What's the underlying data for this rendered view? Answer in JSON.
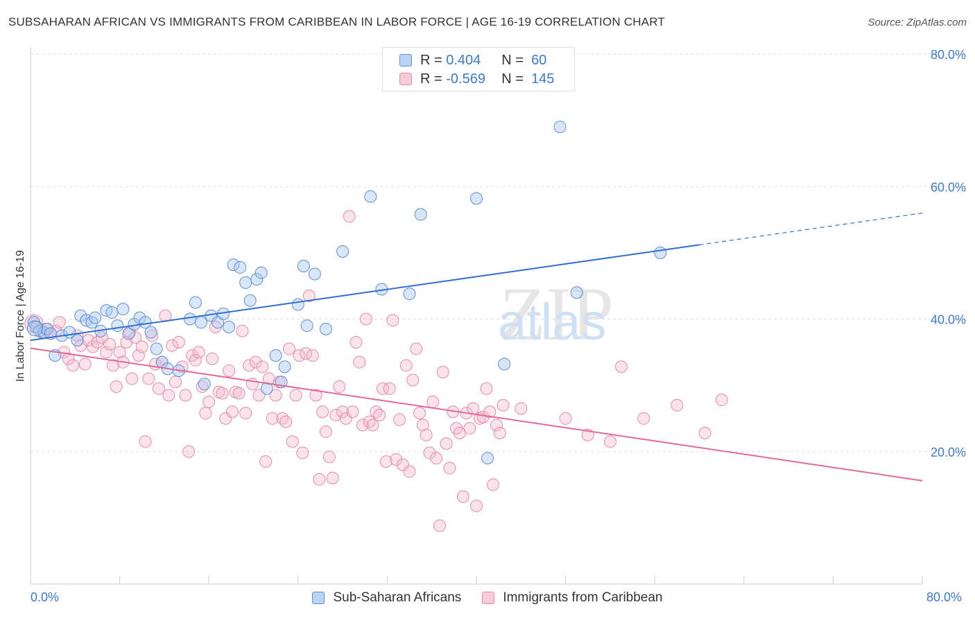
{
  "header": {
    "title": "SUBSAHARAN AFRICAN VS IMMIGRANTS FROM CARIBBEAN IN LABOR FORCE | AGE 16-19 CORRELATION CHART",
    "source": "Source: ZipAtlas.com"
  },
  "legend": {
    "series1": {
      "r_label": "R =",
      "r_value": "0.404",
      "n_label": "N =",
      "n_value": "60"
    },
    "series2": {
      "r_label": "R =",
      "r_value": "-0.569",
      "n_label": "N =",
      "n_value": "145"
    }
  },
  "watermark": {
    "part1": "ZIP",
    "part2": "atlas"
  },
  "colors": {
    "blue_fill": "#a8c8f0",
    "blue_stroke": "#5b8fd6",
    "blue_line": "#2f6fcf",
    "pink_fill": "#f6b8cc",
    "pink_stroke": "#e58aa8",
    "pink_line": "#e06a99",
    "tick_text": "#3a7bd5",
    "grid": "#dddddd"
  },
  "chart_data": {
    "type": "scatter",
    "ylabel": "In Labor Force | Age 16-19",
    "xlabel": "",
    "xlim": [
      0,
      80
    ],
    "ylim": [
      0,
      80
    ],
    "x_tick_labels": {
      "left": "0.0%",
      "right": "80.0%"
    },
    "y_ticks": [
      {
        "value": 20,
        "label": "20.0%"
      },
      {
        "value": 40,
        "label": "40.0%"
      },
      {
        "value": 60,
        "label": "60.0%"
      },
      {
        "value": 80,
        "label": "80.0%"
      }
    ],
    "grid": true,
    "series": [
      {
        "name": "Sub-Saharan Africans",
        "color": "#5b8fd6",
        "trend": {
          "x0": 0,
          "y0": 36.8,
          "x1": 60,
          "y1": 51.2,
          "dash_to_x": 80,
          "dash_to_y": 56.0
        },
        "points": [
          [
            0.3,
            39.5
          ],
          [
            0.5,
            38.8
          ],
          [
            0.8,
            38.2
          ],
          [
            1.2,
            38.0
          ],
          [
            1.5,
            38.5
          ],
          [
            1.8,
            37.8
          ],
          [
            2.2,
            34.5
          ],
          [
            2.8,
            37.5
          ],
          [
            3.5,
            38.0
          ],
          [
            4.2,
            36.8
          ],
          [
            4.5,
            40.5
          ],
          [
            5.0,
            39.8
          ],
          [
            5.5,
            39.5
          ],
          [
            5.8,
            40.2
          ],
          [
            6.3,
            38.2
          ],
          [
            6.8,
            41.3
          ],
          [
            7.3,
            41.0
          ],
          [
            7.8,
            39.0
          ],
          [
            8.3,
            41.5
          ],
          [
            8.8,
            37.8
          ],
          [
            9.3,
            39.2
          ],
          [
            9.8,
            40.2
          ],
          [
            10.3,
            39.5
          ],
          [
            10.8,
            38.0
          ],
          [
            11.3,
            35.5
          ],
          [
            11.8,
            33.5
          ],
          [
            12.3,
            32.5
          ],
          [
            13.3,
            32.2
          ],
          [
            14.3,
            40.0
          ],
          [
            14.8,
            42.5
          ],
          [
            15.3,
            39.5
          ],
          [
            15.6,
            30.2
          ],
          [
            16.2,
            40.5
          ],
          [
            16.8,
            39.5
          ],
          [
            17.3,
            40.8
          ],
          [
            17.8,
            38.8
          ],
          [
            18.2,
            48.2
          ],
          [
            18.8,
            47.8
          ],
          [
            19.3,
            45.5
          ],
          [
            19.7,
            42.8
          ],
          [
            20.3,
            46.0
          ],
          [
            20.7,
            47.0
          ],
          [
            21.2,
            29.5
          ],
          [
            22.0,
            34.5
          ],
          [
            22.5,
            30.5
          ],
          [
            22.8,
            32.8
          ],
          [
            24.0,
            42.2
          ],
          [
            24.5,
            48.0
          ],
          [
            25.5,
            46.8
          ],
          [
            24.8,
            39.0
          ],
          [
            26.5,
            38.5
          ],
          [
            28.0,
            50.2
          ],
          [
            30.5,
            58.5
          ],
          [
            31.5,
            44.5
          ],
          [
            34.0,
            43.8
          ],
          [
            35.0,
            55.8
          ],
          [
            40.0,
            58.2
          ],
          [
            41.0,
            19.0
          ],
          [
            42.5,
            33.2
          ],
          [
            47.5,
            69.0
          ],
          [
            49.0,
            44.0
          ],
          [
            56.5,
            50.0
          ]
        ]
      },
      {
        "name": "Immigrants from Caribbean",
        "color": "#e58aa8",
        "trend": {
          "x0": 0,
          "y0": 35.6,
          "x1": 80,
          "y1": 15.6
        },
        "points": [
          [
            0.3,
            39.5
          ],
          [
            0.6,
            38.8
          ],
          [
            1.0,
            38.0
          ],
          [
            1.4,
            38.5
          ],
          [
            1.8,
            37.8
          ],
          [
            2.3,
            38.2
          ],
          [
            2.6,
            39.5
          ],
          [
            3.0,
            35.0
          ],
          [
            3.4,
            34.0
          ],
          [
            3.8,
            33.0
          ],
          [
            4.2,
            37.5
          ],
          [
            4.5,
            36.0
          ],
          [
            4.9,
            33.2
          ],
          [
            5.2,
            36.8
          ],
          [
            5.6,
            35.8
          ],
          [
            6.0,
            36.5
          ],
          [
            6.4,
            37.2
          ],
          [
            6.8,
            35.0
          ],
          [
            7.1,
            36.2
          ],
          [
            7.4,
            33.0
          ],
          [
            7.7,
            29.8
          ],
          [
            8.0,
            35.0
          ],
          [
            8.3,
            33.5
          ],
          [
            8.6,
            36.5
          ],
          [
            8.9,
            38.0
          ],
          [
            9.1,
            31.0
          ],
          [
            9.4,
            37.2
          ],
          [
            9.7,
            34.5
          ],
          [
            10.0,
            35.8
          ],
          [
            10.3,
            21.5
          ],
          [
            10.6,
            31.0
          ],
          [
            10.9,
            37.5
          ],
          [
            11.2,
            33.2
          ],
          [
            11.5,
            29.5
          ],
          [
            11.8,
            33.5
          ],
          [
            12.1,
            40.5
          ],
          [
            12.4,
            28.5
          ],
          [
            12.7,
            36.0
          ],
          [
            13.0,
            30.5
          ],
          [
            13.3,
            36.5
          ],
          [
            13.6,
            32.8
          ],
          [
            13.9,
            28.5
          ],
          [
            14.2,
            20.0
          ],
          [
            14.5,
            34.5
          ],
          [
            14.8,
            33.8
          ],
          [
            15.1,
            35.0
          ],
          [
            15.4,
            29.8
          ],
          [
            15.7,
            25.8
          ],
          [
            16.0,
            27.5
          ],
          [
            16.3,
            34.0
          ],
          [
            16.6,
            38.8
          ],
          [
            16.9,
            29.0
          ],
          [
            17.2,
            28.8
          ],
          [
            17.5,
            25.0
          ],
          [
            17.8,
            32.2
          ],
          [
            18.1,
            26.0
          ],
          [
            18.4,
            29.0
          ],
          [
            18.7,
            28.8
          ],
          [
            19.0,
            38.2
          ],
          [
            19.3,
            25.8
          ],
          [
            19.6,
            33.0
          ],
          [
            19.9,
            30.2
          ],
          [
            20.2,
            33.5
          ],
          [
            20.5,
            28.5
          ],
          [
            20.8,
            32.8
          ],
          [
            21.1,
            18.5
          ],
          [
            21.4,
            31.0
          ],
          [
            21.7,
            25.0
          ],
          [
            22.0,
            28.5
          ],
          [
            22.3,
            30.5
          ],
          [
            22.6,
            25.0
          ],
          [
            22.9,
            24.5
          ],
          [
            23.2,
            35.5
          ],
          [
            23.5,
            21.5
          ],
          [
            23.8,
            28.5
          ],
          [
            24.1,
            34.5
          ],
          [
            24.4,
            19.8
          ],
          [
            24.7,
            34.8
          ],
          [
            25.0,
            43.5
          ],
          [
            25.3,
            34.5
          ],
          [
            25.6,
            28.5
          ],
          [
            25.9,
            15.8
          ],
          [
            26.2,
            26.0
          ],
          [
            26.5,
            23.0
          ],
          [
            26.8,
            19.2
          ],
          [
            27.1,
            16.0
          ],
          [
            27.4,
            25.5
          ],
          [
            27.7,
            29.8
          ],
          [
            28.0,
            26.0
          ],
          [
            28.3,
            25.0
          ],
          [
            28.6,
            55.5
          ],
          [
            28.9,
            26.0
          ],
          [
            29.2,
            36.5
          ],
          [
            29.5,
            33.5
          ],
          [
            29.8,
            24.0
          ],
          [
            30.1,
            40.0
          ],
          [
            30.4,
            24.5
          ],
          [
            30.7,
            24.0
          ],
          [
            31.0,
            26.0
          ],
          [
            31.3,
            25.5
          ],
          [
            31.6,
            29.5
          ],
          [
            31.9,
            18.5
          ],
          [
            32.2,
            29.5
          ],
          [
            32.5,
            39.8
          ],
          [
            32.8,
            18.8
          ],
          [
            33.1,
            24.8
          ],
          [
            33.4,
            18.0
          ],
          [
            33.7,
            33.0
          ],
          [
            34.0,
            17.0
          ],
          [
            34.3,
            30.8
          ],
          [
            34.6,
            35.5
          ],
          [
            34.9,
            25.8
          ],
          [
            35.2,
            24.0
          ],
          [
            35.5,
            22.5
          ],
          [
            35.8,
            19.8
          ],
          [
            36.1,
            27.5
          ],
          [
            36.4,
            19.0
          ],
          [
            36.7,
            8.8
          ],
          [
            37.0,
            32.0
          ],
          [
            37.3,
            21.2
          ],
          [
            37.6,
            17.5
          ],
          [
            37.9,
            26.0
          ],
          [
            38.2,
            23.5
          ],
          [
            38.5,
            22.8
          ],
          [
            38.8,
            13.2
          ],
          [
            39.1,
            25.8
          ],
          [
            39.4,
            23.5
          ],
          [
            39.7,
            26.5
          ],
          [
            40.0,
            11.8
          ],
          [
            40.3,
            25.0
          ],
          [
            40.6,
            25.2
          ],
          [
            40.9,
            29.5
          ],
          [
            41.2,
            26.0
          ],
          [
            41.5,
            15.0
          ],
          [
            41.8,
            24.0
          ],
          [
            42.1,
            22.8
          ],
          [
            42.4,
            27.0
          ],
          [
            44.0,
            26.5
          ],
          [
            48.0,
            25.0
          ],
          [
            50.0,
            22.5
          ],
          [
            52.0,
            21.5
          ],
          [
            53.0,
            32.8
          ],
          [
            55.0,
            25.0
          ],
          [
            58.0,
            27.0
          ],
          [
            60.5,
            22.8
          ],
          [
            62.0,
            27.8
          ]
        ]
      }
    ]
  }
}
